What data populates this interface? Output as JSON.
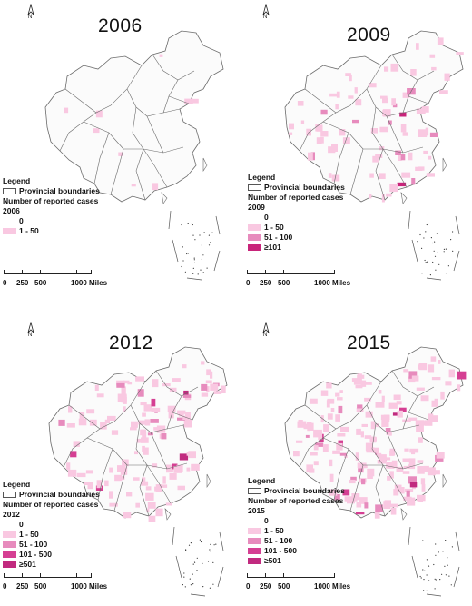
{
  "colors": {
    "class_0": "#ffffff",
    "class_1_50": "#f9c8e1",
    "class_51_100": "#e78bbd",
    "class_101_500": "#d53f93",
    "class_ge101": "#c8247a",
    "class_ge501": "#c12a7f",
    "boundary": "#6b6b6b"
  },
  "panels": [
    {
      "year": "2006",
      "legend": {
        "title": "Legend",
        "boundary_label": "Provincial boundaries",
        "cases_title": "Number of reported cases",
        "year_label": "2006",
        "classes": [
          {
            "label": "0",
            "color": "#ffffff"
          },
          {
            "label": "1 - 50",
            "color": "#f9c8e1"
          }
        ]
      },
      "scale": {
        "ticks": [
          "0",
          "250",
          "500",
          "1000 Miles"
        ]
      },
      "north": "N",
      "coverage": 0.04
    },
    {
      "year": "2009",
      "legend": {
        "title": "Legend",
        "boundary_label": "Provincial boundaries",
        "cases_title": "Number of reported cases",
        "year_label": "2009",
        "classes": [
          {
            "label": "0",
            "color": "#ffffff"
          },
          {
            "label": "1 - 50",
            "color": "#f9c8e1"
          },
          {
            "label": "51 - 100",
            "color": "#e78bbd"
          },
          {
            "label": "≥101",
            "color": "#c8247a"
          }
        ]
      },
      "scale": {
        "ticks": [
          "0",
          "250",
          "500",
          "1000 Miles"
        ]
      },
      "north": "N",
      "coverage": 0.3
    },
    {
      "year": "2012",
      "legend": {
        "title": "Legend",
        "boundary_label": "Provincial boundaries",
        "cases_title": "Number of reported cases",
        "year_label": "2012",
        "classes": [
          {
            "label": "0",
            "color": "#ffffff"
          },
          {
            "label": "1 - 50",
            "color": "#f9c8e1"
          },
          {
            "label": "51 - 100",
            "color": "#e78bbd"
          },
          {
            "label": "101 - 500",
            "color": "#d53f93"
          },
          {
            "label": "≥501",
            "color": "#c12a7f"
          }
        ]
      },
      "scale": {
        "ticks": [
          "0",
          "250",
          "500",
          "1000 Miles"
        ]
      },
      "north": "N",
      "coverage": 0.5
    },
    {
      "year": "2015",
      "legend": {
        "title": "Legend",
        "boundary_label": "Provincial boundaries",
        "cases_title": "Number of reported cases",
        "year_label": "2015",
        "classes": [
          {
            "label": "0",
            "color": "#ffffff"
          },
          {
            "label": "1 - 50",
            "color": "#f9c8e1"
          },
          {
            "label": "51 - 100",
            "color": "#e78bbd"
          },
          {
            "label": "101 - 500",
            "color": "#d53f93"
          },
          {
            "label": "≥501",
            "color": "#c12a7f"
          }
        ]
      },
      "scale": {
        "ticks": [
          "0",
          "250",
          "500",
          "1000 Miles"
        ]
      },
      "north": "N",
      "coverage": 0.7
    }
  ]
}
